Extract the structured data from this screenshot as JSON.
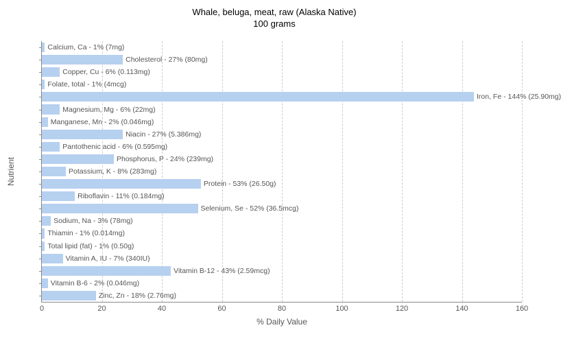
{
  "chart": {
    "type": "bar",
    "title_line1": "Whale, beluga, meat, raw (Alaska Native)",
    "title_line2": "100 grams",
    "title_fontsize": 13,
    "x_axis_label": "% Daily Value",
    "y_axis_label": "Nutrient",
    "label_fontsize": 12,
    "xlim": [
      0,
      160
    ],
    "xtick_step": 20,
    "xticks": [
      0,
      20,
      40,
      60,
      80,
      100,
      120,
      140,
      160
    ],
    "bar_color": "#b6d0f0",
    "background_color": "#ffffff",
    "grid_color": "#cccccc",
    "axis_color": "#888888",
    "text_color": "#555555",
    "nutrients": [
      {
        "label": "Calcium, Ca - 1% (7mg)",
        "value": 1
      },
      {
        "label": "Cholesterol - 27% (80mg)",
        "value": 27
      },
      {
        "label": "Copper, Cu - 6% (0.113mg)",
        "value": 6
      },
      {
        "label": "Folate, total - 1% (4mcg)",
        "value": 1
      },
      {
        "label": "Iron, Fe - 144% (25.90mg)",
        "value": 144
      },
      {
        "label": "Magnesium, Mg - 6% (22mg)",
        "value": 6
      },
      {
        "label": "Manganese, Mn - 2% (0.046mg)",
        "value": 2
      },
      {
        "label": "Niacin - 27% (5.386mg)",
        "value": 27
      },
      {
        "label": "Pantothenic acid - 6% (0.595mg)",
        "value": 6
      },
      {
        "label": "Phosphorus, P - 24% (239mg)",
        "value": 24
      },
      {
        "label": "Potassium, K - 8% (283mg)",
        "value": 8
      },
      {
        "label": "Protein - 53% (26.50g)",
        "value": 53
      },
      {
        "label": "Riboflavin - 11% (0.184mg)",
        "value": 11
      },
      {
        "label": "Selenium, Se - 52% (36.5mcg)",
        "value": 52
      },
      {
        "label": "Sodium, Na - 3% (78mg)",
        "value": 3
      },
      {
        "label": "Thiamin - 1% (0.014mg)",
        "value": 1
      },
      {
        "label": "Total lipid (fat) - 1% (0.50g)",
        "value": 1
      },
      {
        "label": "Vitamin A, IU - 7% (340IU)",
        "value": 7
      },
      {
        "label": "Vitamin B-12 - 43% (2.59mcg)",
        "value": 43
      },
      {
        "label": "Vitamin B-6 - 2% (0.046mg)",
        "value": 2
      },
      {
        "label": "Zinc, Zn - 18% (2.76mg)",
        "value": 18
      }
    ]
  }
}
